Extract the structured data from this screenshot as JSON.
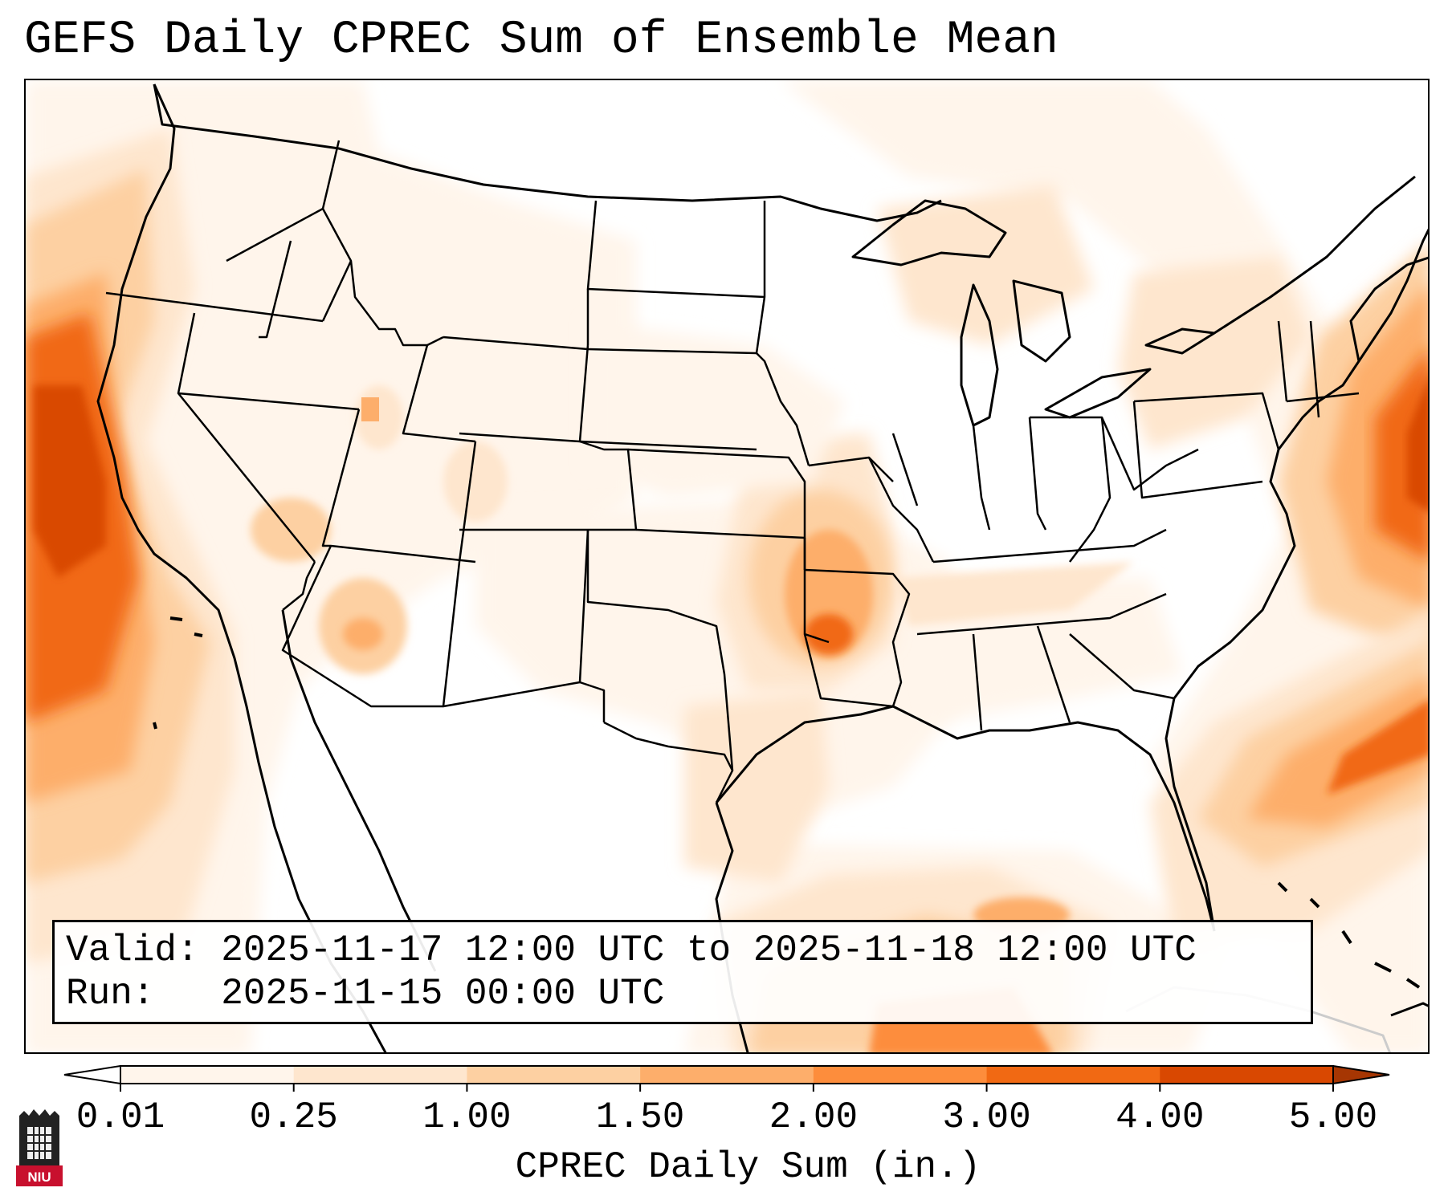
{
  "title": "GEFS Daily CPREC Sum of Ensemble Mean",
  "info": {
    "valid_label": "Valid:",
    "valid_value": "2025-11-17 12:00 UTC to 2025-11-18 12:00 UTC",
    "run_label": "Run:",
    "run_value": "2025-11-15 00:00 UTC"
  },
  "colorbar": {
    "title": "CPREC Daily Sum (in.)",
    "levels": [
      0.01,
      0.25,
      1.0,
      1.5,
      2.0,
      3.0,
      4.0,
      5.0
    ],
    "labels": [
      "0.01",
      "0.25",
      "1.00",
      "1.50",
      "2.00",
      "3.00",
      "4.00",
      "5.00"
    ],
    "colors": [
      "#fff5eb",
      "#fee6ce",
      "#fdd0a2",
      "#fdae6b",
      "#fd8d3c",
      "#f16913",
      "#d94801",
      "#a63603"
    ],
    "extend": "both"
  },
  "logo": {
    "text": "NIU",
    "color": "#c8102e"
  },
  "precip_regions": [
    {
      "name": "pacific-offshore-core",
      "value_in": 3.0
    },
    {
      "name": "northern-california-coast",
      "value_in": 2.2
    },
    {
      "name": "southern-california-coast",
      "value_in": 1.6
    },
    {
      "name": "arkansas-missouri",
      "value_in": 1.6
    },
    {
      "name": "central-arizona",
      "value_in": 1.2
    },
    {
      "name": "western-atlantic-offshore",
      "value_in": 2.4
    },
    {
      "name": "gulf-of-mexico-south",
      "value_in": 1.6
    }
  ]
}
